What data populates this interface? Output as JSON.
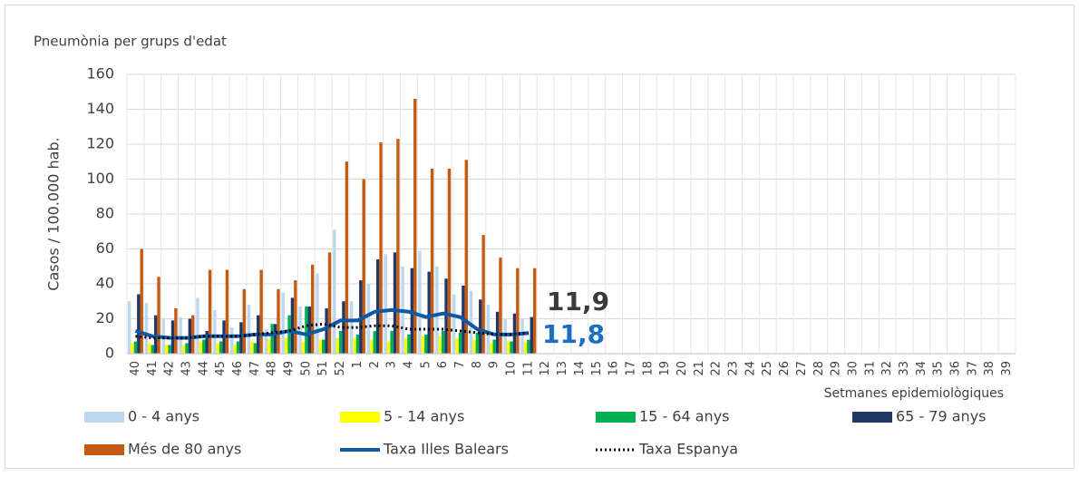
{
  "chart_data": {
    "type": "bar",
    "title": "Pneumònia per grups d'edat",
    "y_label": "Casos / 100.000 hab.",
    "x_label": "Setmanes epidemiològiques",
    "categories": [
      "40",
      "41",
      "42",
      "43",
      "44",
      "45",
      "46",
      "47",
      "48",
      "49",
      "50",
      "51",
      "52",
      "1",
      "2",
      "3",
      "4",
      "5",
      "6",
      "7",
      "8",
      "9",
      "10",
      "11",
      "12",
      "13",
      "14",
      "15",
      "16",
      "17",
      "18",
      "19",
      "20",
      "21",
      "22",
      "23",
      "24",
      "25",
      "26",
      "27",
      "28",
      "29",
      "30",
      "31",
      "32",
      "33",
      "34",
      "35",
      "36",
      "37",
      "38",
      "39"
    ],
    "ylim": [
      0,
      160
    ],
    "yticks": [
      0,
      20,
      40,
      60,
      80,
      100,
      120,
      140,
      160
    ],
    "grid": true,
    "series": [
      {
        "name": "0 - 4 anys",
        "type": "bar",
        "color": "#bdd7ee",
        "values": [
          30,
          29,
          20,
          21,
          32,
          25,
          15,
          28,
          14,
          35,
          27,
          46,
          71,
          30,
          40,
          57,
          50,
          59,
          50,
          34,
          36,
          28,
          20,
          20,
          null,
          null,
          null,
          null,
          null,
          null,
          null,
          null,
          null,
          null,
          null,
          null,
          null,
          null,
          null,
          null,
          null,
          null,
          null,
          null,
          null,
          null,
          null,
          null,
          null,
          null,
          null,
          null
        ]
      },
      {
        "name": "5 - 14 anys",
        "type": "bar",
        "color": "#ffff00",
        "values": [
          6,
          6,
          5,
          5,
          7,
          6,
          5,
          7,
          8,
          9,
          7,
          8,
          9,
          9,
          8,
          7,
          9,
          10,
          10,
          9,
          8,
          6,
          7,
          7,
          null,
          null,
          null,
          null,
          null,
          null,
          null,
          null,
          null,
          null,
          null,
          null,
          null,
          null,
          null,
          null,
          null,
          null,
          null,
          null,
          null,
          null,
          null,
          null,
          null,
          null,
          null,
          null
        ]
      },
      {
        "name": "15 - 64 anys",
        "type": "bar",
        "color": "#00b050",
        "values": [
          7,
          5,
          5,
          6,
          8,
          7,
          7,
          6,
          17,
          22,
          27,
          8,
          13,
          11,
          13,
          13,
          11,
          11,
          13,
          12,
          12,
          8,
          7,
          8,
          null,
          null,
          null,
          null,
          null,
          null,
          null,
          null,
          null,
          null,
          null,
          null,
          null,
          null,
          null,
          null,
          null,
          null,
          null,
          null,
          null,
          null,
          null,
          null,
          null,
          null,
          null,
          null
        ]
      },
      {
        "name": "65 - 79 anys",
        "type": "bar",
        "color": "#203864",
        "values": [
          34,
          22,
          19,
          20,
          13,
          19,
          18,
          22,
          17,
          32,
          27,
          26,
          30,
          42,
          54,
          58,
          49,
          47,
          43,
          39,
          31,
          24,
          23,
          21,
          null,
          null,
          null,
          null,
          null,
          null,
          null,
          null,
          null,
          null,
          null,
          null,
          null,
          null,
          null,
          null,
          null,
          null,
          null,
          null,
          null,
          null,
          null,
          null,
          null,
          null,
          null,
          null
        ]
      },
      {
        "name": "Més de 80 anys",
        "type": "bar",
        "color": "#c55a11",
        "values": [
          60,
          44,
          26,
          22,
          48,
          48,
          37,
          48,
          37,
          42,
          51,
          58,
          110,
          100,
          121,
          123,
          146,
          106,
          106,
          111,
          68,
          55,
          49,
          49,
          null,
          null,
          null,
          null,
          null,
          null,
          null,
          null,
          null,
          null,
          null,
          null,
          null,
          null,
          null,
          null,
          null,
          null,
          null,
          null,
          null,
          null,
          null,
          null,
          null,
          null,
          null,
          null
        ]
      },
      {
        "name": "Taxa Illes Balears",
        "type": "line",
        "color": "#0f58a6",
        "values": [
          13,
          10,
          9,
          9,
          10,
          10,
          10,
          11,
          11,
          13,
          11,
          14,
          19,
          19,
          24,
          25,
          24,
          21,
          23,
          21,
          14,
          11,
          11,
          11.8,
          null,
          null,
          null,
          null,
          null,
          null,
          null,
          null,
          null,
          null,
          null,
          null,
          null,
          null,
          null,
          null,
          null,
          null,
          null,
          null,
          null,
          null,
          null,
          null,
          null,
          null,
          null,
          null
        ]
      },
      {
        "name": "Taxa Espanya",
        "type": "line",
        "dashed": true,
        "color": "#000000",
        "values": [
          10,
          9,
          9,
          9,
          10,
          10,
          10,
          11,
          12,
          13,
          16,
          17,
          15,
          15,
          16,
          16,
          14,
          14,
          14,
          13,
          12,
          11,
          11,
          11.9,
          null,
          null,
          null,
          null,
          null,
          null,
          null,
          null,
          null,
          null,
          null,
          null,
          null,
          null,
          null,
          null,
          null,
          null,
          null,
          null,
          null,
          null,
          null,
          null,
          null,
          null,
          null,
          null
        ]
      }
    ],
    "annotations": [
      "11,9",
      "11,8"
    ]
  }
}
